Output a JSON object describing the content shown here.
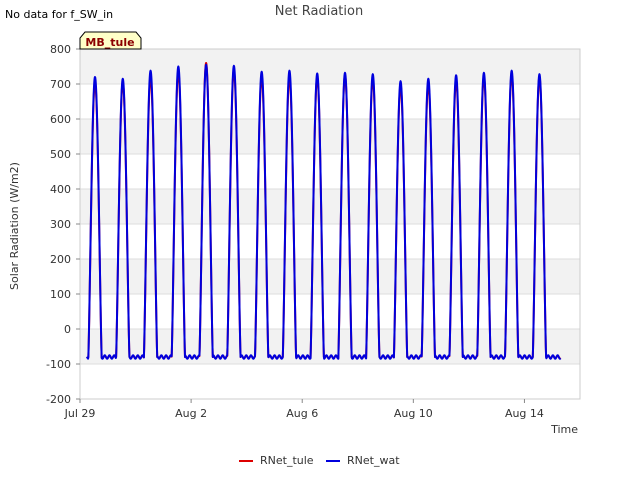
{
  "chart_data": {
    "type": "line",
    "title": "Net Radiation",
    "note": "No data for f_SW_in",
    "site_badge": "MB_tule",
    "xlabel": "Time",
    "ylabel": "Solar Radiation (W/m2)",
    "xlim": [
      0,
      18
    ],
    "ylim": [
      -200,
      800
    ],
    "yticks": [
      -200,
      -100,
      0,
      100,
      200,
      300,
      400,
      500,
      600,
      700,
      800
    ],
    "xticks": [
      {
        "value": 0,
        "label": "Jul 29"
      },
      {
        "value": 4,
        "label": "Aug 2"
      },
      {
        "value": 8,
        "label": "Aug 6"
      },
      {
        "value": 12,
        "label": "Aug 10"
      },
      {
        "value": 16,
        "label": "Aug 14"
      }
    ],
    "grid": true,
    "background_bands": true,
    "legend_position": "bottom",
    "night_value": -80,
    "daily_peaks": [
      {
        "day": 0,
        "RNet_tule": 705,
        "RNet_wat": 720
      },
      {
        "day": 1,
        "RNet_tule": 705,
        "RNet_wat": 715
      },
      {
        "day": 2,
        "RNet_tule": 720,
        "RNet_wat": 738
      },
      {
        "day": 3,
        "RNet_tule": 735,
        "RNet_wat": 750
      },
      {
        "day": 4,
        "RNet_tule": 760,
        "RNet_wat": 755
      },
      {
        "day": 5,
        "RNet_tule": 740,
        "RNet_wat": 752
      },
      {
        "day": 6,
        "RNet_tule": 720,
        "RNet_wat": 735
      },
      {
        "day": 7,
        "RNet_tule": 720,
        "RNet_wat": 738
      },
      {
        "day": 8,
        "RNet_tule": 720,
        "RNet_wat": 730
      },
      {
        "day": 9,
        "RNet_tule": 725,
        "RNet_wat": 732
      },
      {
        "day": 10,
        "RNet_tule": 715,
        "RNet_wat": 728
      },
      {
        "day": 11,
        "RNet_tule": 695,
        "RNet_wat": 708
      },
      {
        "day": 12,
        "RNet_tule": 700,
        "RNet_wat": 715
      },
      {
        "day": 13,
        "RNet_tule": 710,
        "RNet_wat": 725
      },
      {
        "day": 14,
        "RNet_tule": 720,
        "RNet_wat": 732
      },
      {
        "day": 15,
        "RNet_tule": 728,
        "RNet_wat": 738
      },
      {
        "day": 16,
        "RNet_tule": 720,
        "RNet_wat": 728
      }
    ],
    "series": [
      {
        "name": "RNet_tule",
        "color": "#dd0000"
      },
      {
        "name": "RNet_wat",
        "color": "#0000dd"
      }
    ]
  }
}
